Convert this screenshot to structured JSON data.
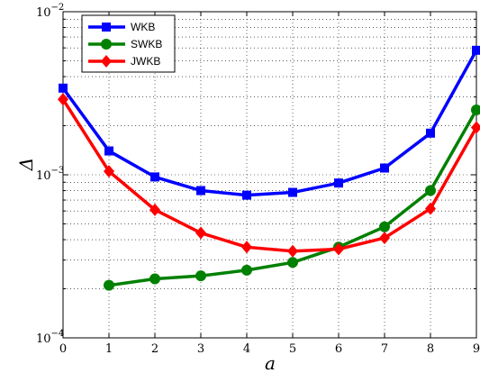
{
  "chart_data": {
    "type": "line",
    "title": "",
    "xlabel": "a",
    "ylabel": "Δ",
    "y_scale": "log",
    "xlim": [
      0,
      9
    ],
    "ylim": [
      0.0001,
      0.01
    ],
    "grid": true,
    "legend_position": "top-left",
    "x_ticks": [
      "0",
      "1",
      "2",
      "3",
      "4",
      "5",
      "6",
      "7",
      "8",
      "9"
    ],
    "y_ticks": [
      {
        "value": 0.0001,
        "base": "10",
        "exp": "−4"
      },
      {
        "value": 0.001,
        "base": "10",
        "exp": "−3"
      },
      {
        "value": 0.01,
        "base": "10",
        "exp": "−2"
      }
    ],
    "series": [
      {
        "name": "WKB",
        "color": "#0000ff",
        "marker": "square",
        "x": [
          0,
          1,
          2,
          3,
          4,
          5,
          6,
          7,
          8,
          9
        ],
        "values": [
          0.0034,
          0.0014,
          0.00097,
          0.0008,
          0.00075,
          0.00078,
          0.00089,
          0.0011,
          0.0018,
          0.0058
        ]
      },
      {
        "name": "SWKB",
        "color": "#008000",
        "marker": "circle",
        "x": [
          1,
          2,
          3,
          4,
          5,
          6,
          7,
          8,
          9
        ],
        "values": [
          0.00021,
          0.00023,
          0.00024,
          0.00026,
          0.00029,
          0.00036,
          0.00048,
          0.0008,
          0.0025
        ]
      },
      {
        "name": "JWKB",
        "color": "#ff0000",
        "marker": "diamond",
        "x": [
          0,
          1,
          2,
          3,
          4,
          5,
          6,
          7,
          8,
          9
        ],
        "values": [
          0.0029,
          0.00105,
          0.00061,
          0.00044,
          0.00036,
          0.00034,
          0.00035,
          0.00041,
          0.00062,
          0.00195
        ]
      }
    ]
  }
}
